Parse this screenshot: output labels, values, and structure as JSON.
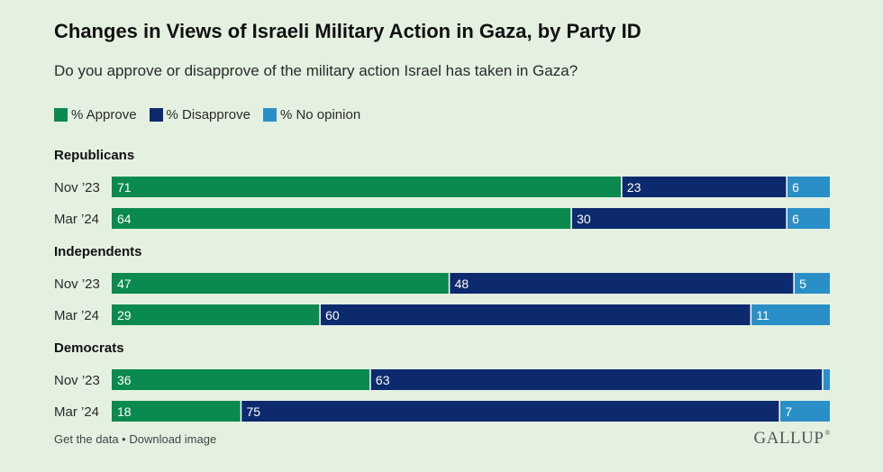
{
  "header": {
    "title": "Changes in Views of Israeli Military Action in Gaza, by Party ID",
    "subtitle": "Do you approve or disapprove of the military action Israel has taken in Gaza?"
  },
  "footer": {
    "get_data": "Get the data",
    "separator": " • ",
    "download": "Download image",
    "brand": "GALLUP",
    "brand_mark": "®"
  },
  "colors": {
    "approve": "#0a8a4e",
    "disapprove": "#0d2a6e",
    "no_opinion": "#2b8fc7",
    "background": "#e4f1e1"
  },
  "chart_data": {
    "type": "bar",
    "orientation": "horizontal",
    "stacked": true,
    "xlim": [
      0,
      100
    ],
    "legend": "top-left",
    "series_names": [
      "% Approve",
      "% Disapprove",
      "% No opinion"
    ],
    "groups": [
      {
        "name": "Republicans",
        "rows": [
          {
            "label": "Nov ’23",
            "values": [
              71,
              23,
              6
            ],
            "labels": [
              "71",
              "23",
              "6"
            ]
          },
          {
            "label": "Mar ’24",
            "values": [
              64,
              30,
              6
            ],
            "labels": [
              "64",
              "30",
              "6"
            ]
          }
        ]
      },
      {
        "name": "Independents",
        "rows": [
          {
            "label": "Nov ’23",
            "values": [
              47,
              48,
              5
            ],
            "labels": [
              "47",
              "48",
              "5"
            ]
          },
          {
            "label": "Mar ’24",
            "values": [
              29,
              60,
              11
            ],
            "labels": [
              "29",
              "60",
              "11"
            ]
          }
        ]
      },
      {
        "name": "Democrats",
        "rows": [
          {
            "label": "Nov ’23",
            "values": [
              36,
              63,
              1
            ],
            "labels": [
              "36",
              "63",
              ""
            ]
          },
          {
            "label": "Mar ’24",
            "values": [
              18,
              75,
              7
            ],
            "labels": [
              "18",
              "75",
              "7"
            ]
          }
        ]
      }
    ]
  }
}
